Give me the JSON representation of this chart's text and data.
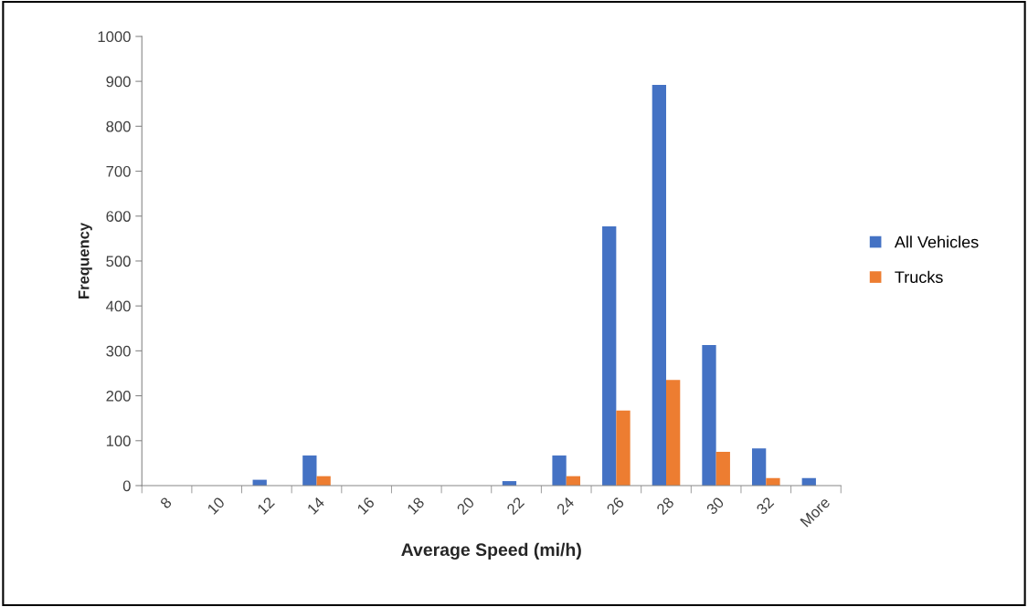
{
  "chart_data": {
    "type": "bar",
    "xlabel": "Average Speed (mi/h)",
    "ylabel": "Frequency",
    "categories": [
      "8",
      "10",
      "12",
      "14",
      "16",
      "18",
      "20",
      "22",
      "24",
      "26",
      "28",
      "30",
      "32",
      "More"
    ],
    "series": [
      {
        "name": "All Vehicles",
        "color": "#4472c4",
        "values": [
          0,
          0,
          13,
          67,
          0,
          0,
          0,
          10,
          67,
          577,
          892,
          313,
          83,
          17
        ]
      },
      {
        "name": "Trucks",
        "color": "#ed7d31",
        "values": [
          0,
          0,
          0,
          21,
          0,
          0,
          0,
          0,
          21,
          167,
          235,
          75,
          17,
          0
        ]
      }
    ],
    "ylim": [
      0,
      1000
    ],
    "yticks": [
      0,
      100,
      200,
      300,
      400,
      500,
      600,
      700,
      800,
      900,
      1000
    ],
    "grid": false,
    "legend": "right"
  }
}
